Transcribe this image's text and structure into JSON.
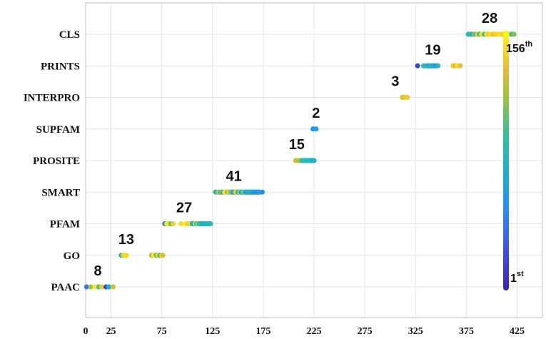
{
  "chart_data": {
    "type": "scatter",
    "xlim": [
      0,
      450
    ],
    "x_ticks": [
      0,
      25,
      75,
      125,
      175,
      225,
      275,
      325,
      375,
      425
    ],
    "grid": true,
    "categories": [
      "PAAC",
      "GO",
      "PFAM",
      "SMART",
      "PROSITE",
      "SUPFAM",
      "INTERPRO",
      "PRINTS",
      "CLS"
    ],
    "colorbar": {
      "min_label": "1",
      "min_sup": "st",
      "max_label": "156",
      "max_sup": "th",
      "min": 1,
      "max": 156
    },
    "groups": [
      {
        "category": "PAAC",
        "count_label": "8",
        "count_x": 12,
        "points": [
          [
            1,
            40
          ],
          [
            5,
            120
          ],
          [
            10,
            150
          ],
          [
            13,
            100
          ],
          [
            16,
            140
          ],
          [
            20,
            20
          ],
          [
            23,
            70
          ],
          [
            27,
            130
          ]
        ]
      },
      {
        "category": "GO",
        "count_label": "13",
        "count_x": 40,
        "points": [
          [
            35,
            80
          ],
          [
            37,
            140
          ],
          [
            39,
            150
          ],
          [
            40,
            145
          ],
          [
            65,
            120
          ],
          [
            67,
            150
          ],
          [
            69,
            140
          ],
          [
            70,
            90
          ],
          [
            71,
            135
          ],
          [
            72,
            148
          ],
          [
            73,
            100
          ],
          [
            75,
            145
          ],
          [
            76,
            130
          ]
        ]
      },
      {
        "category": "PFAM",
        "count_label": "27",
        "count_x": 97,
        "points": [
          [
            78,
            30
          ],
          [
            79,
            70
          ],
          [
            80,
            150
          ],
          [
            82,
            145
          ],
          [
            84,
            100
          ],
          [
            86,
            140
          ],
          [
            94,
            145
          ],
          [
            99,
            150
          ],
          [
            101,
            140
          ],
          [
            103,
            148
          ],
          [
            105,
            80
          ],
          [
            106,
            70
          ],
          [
            108,
            150
          ],
          [
            109,
            100
          ],
          [
            110,
            90
          ],
          [
            111,
            140
          ],
          [
            112,
            75
          ],
          [
            113,
            85
          ],
          [
            114,
            95
          ],
          [
            115,
            65
          ],
          [
            116,
            75
          ],
          [
            117,
            85
          ],
          [
            118,
            70
          ],
          [
            120,
            80
          ],
          [
            121,
            90
          ],
          [
            122,
            60
          ],
          [
            123,
            85
          ]
        ]
      },
      {
        "category": "SMART",
        "count_label": "41",
        "count_x": 146,
        "points": [
          [
            128,
            80
          ],
          [
            130,
            90
          ],
          [
            131,
            130
          ],
          [
            133,
            70
          ],
          [
            134,
            120
          ],
          [
            135,
            85
          ],
          [
            137,
            150
          ],
          [
            138,
            145
          ],
          [
            140,
            100
          ],
          [
            141,
            140
          ],
          [
            142,
            148
          ],
          [
            143,
            95
          ],
          [
            144,
            120
          ],
          [
            145,
            60
          ],
          [
            146,
            80
          ],
          [
            147,
            100
          ],
          [
            148,
            140
          ],
          [
            149,
            150
          ],
          [
            150,
            70
          ],
          [
            151,
            85
          ],
          [
            152,
            145
          ],
          [
            153,
            60
          ],
          [
            154,
            95
          ],
          [
            155,
            75
          ],
          [
            156,
            140
          ],
          [
            157,
            65
          ],
          [
            158,
            85
          ],
          [
            159,
            55
          ],
          [
            160,
            80
          ],
          [
            161,
            70
          ],
          [
            162,
            60
          ],
          [
            163,
            85
          ],
          [
            164,
            75
          ],
          [
            165,
            55
          ],
          [
            166,
            65
          ],
          [
            167,
            50
          ],
          [
            168,
            60
          ],
          [
            169,
            45
          ],
          [
            170,
            55
          ],
          [
            171,
            60
          ],
          [
            174,
            50
          ]
        ]
      },
      {
        "category": "PROSITE",
        "count_label": "15",
        "count_x": 208,
        "points": [
          [
            207,
            120
          ],
          [
            208,
            130
          ],
          [
            210,
            125
          ],
          [
            212,
            110
          ],
          [
            213,
            100
          ],
          [
            214,
            90
          ],
          [
            215,
            80
          ],
          [
            216,
            95
          ],
          [
            218,
            70
          ],
          [
            219,
            85
          ],
          [
            220,
            75
          ],
          [
            221,
            90
          ],
          [
            222,
            80
          ],
          [
            223,
            70
          ],
          [
            225,
            75
          ]
        ]
      },
      {
        "category": "SUPFAM",
        "count_label": "2",
        "count_x": 227,
        "points": [
          [
            224,
            50
          ],
          [
            227,
            60
          ]
        ]
      },
      {
        "category": "INTERPRO",
        "count_label": "3",
        "count_x": 305,
        "points": [
          [
            312,
            130
          ],
          [
            314,
            135
          ],
          [
            317,
            140
          ]
        ]
      },
      {
        "category": "PRINTS",
        "count_label": "19",
        "count_x": 342,
        "points": [
          [
            327,
            20
          ],
          [
            333,
            80
          ],
          [
            334,
            90
          ],
          [
            336,
            75
          ],
          [
            337,
            85
          ],
          [
            338,
            60
          ],
          [
            339,
            80
          ],
          [
            340,
            70
          ],
          [
            341,
            90
          ],
          [
            342,
            55
          ],
          [
            343,
            85
          ],
          [
            344,
            60
          ],
          [
            345,
            50
          ],
          [
            347,
            80
          ],
          [
            362,
            140
          ],
          [
            364,
            130
          ],
          [
            366,
            145
          ],
          [
            368,
            150
          ],
          [
            369,
            135
          ]
        ]
      },
      {
        "category": "CLS",
        "count_label": "28",
        "count_x": 398,
        "points": [
          [
            377,
            80
          ],
          [
            379,
            90
          ],
          [
            381,
            75
          ],
          [
            383,
            130
          ],
          [
            384,
            100
          ],
          [
            386,
            140
          ],
          [
            388,
            90
          ],
          [
            390,
            150
          ],
          [
            391,
            145
          ],
          [
            393,
            85
          ],
          [
            395,
            148
          ],
          [
            397,
            140
          ],
          [
            399,
            150
          ],
          [
            400,
            145
          ],
          [
            402,
            130
          ],
          [
            404,
            150
          ],
          [
            405,
            140
          ],
          [
            407,
            148
          ],
          [
            409,
            145
          ],
          [
            410,
            150
          ],
          [
            411,
            140
          ],
          [
            413,
            145
          ],
          [
            414,
            148
          ],
          [
            415,
            150
          ],
          [
            417,
            90
          ],
          [
            418,
            140
          ],
          [
            420,
            85
          ],
          [
            422,
            110
          ]
        ]
      }
    ]
  }
}
